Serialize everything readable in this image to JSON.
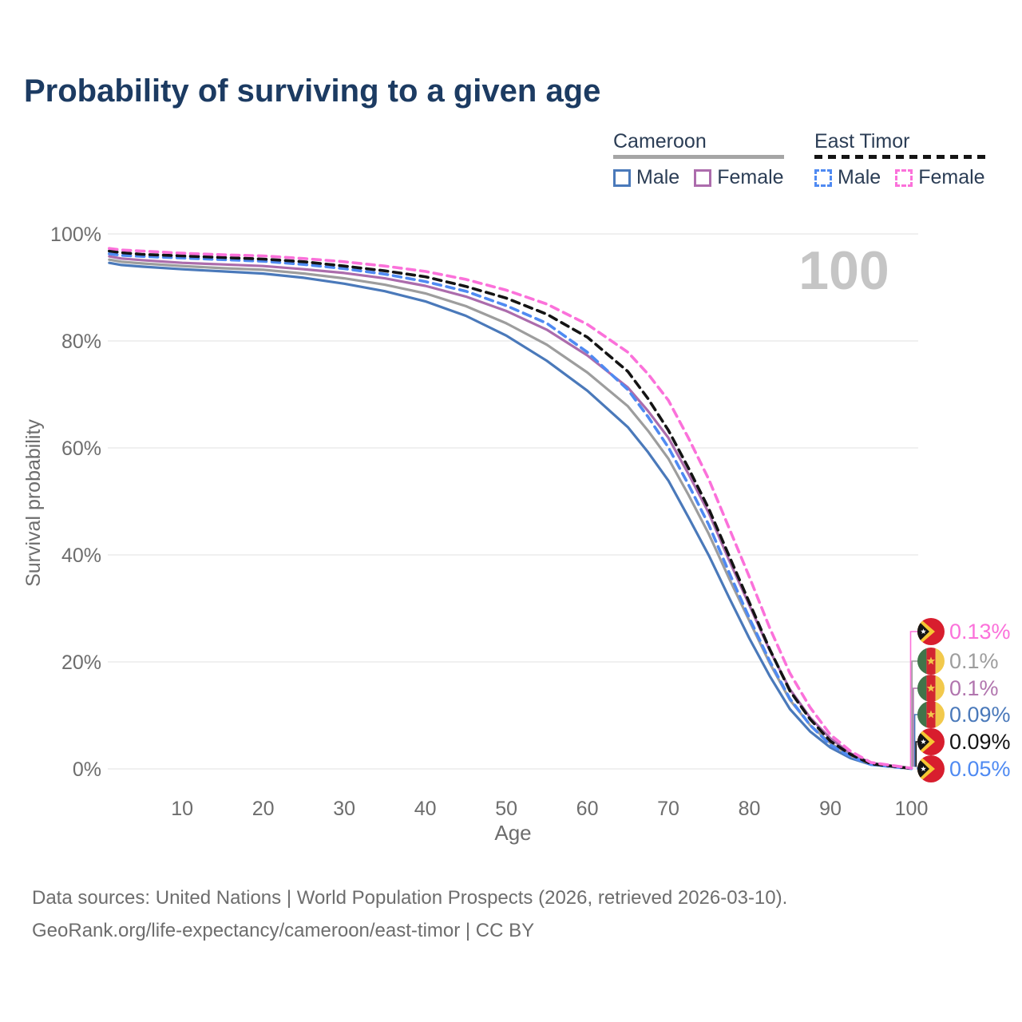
{
  "page": {
    "title": "Probability of surviving to a given age",
    "watermark": "100"
  },
  "legend": {
    "groups": [
      {
        "name": "Cameroon",
        "line_style": "solid",
        "line_color": "#a5a5a5",
        "items": [
          {
            "label": "Male",
            "color": "#4a79ba"
          },
          {
            "label": "Female",
            "color": "#ac6cac"
          }
        ]
      },
      {
        "name": "East Timor",
        "line_style": "dashed",
        "line_color": "#141414",
        "items": [
          {
            "label": "Male",
            "color": "#4f8af2"
          },
          {
            "label": "Female",
            "color": "#fb71da"
          }
        ]
      }
    ]
  },
  "chart_data": {
    "type": "line",
    "title": "Probability of surviving to a given age",
    "xlabel": "Age",
    "ylabel": "Survival probability",
    "xlim": [
      0,
      100
    ],
    "ylim": [
      0,
      100
    ],
    "x_ticks": [
      10,
      20,
      30,
      40,
      50,
      60,
      70,
      80,
      90,
      100
    ],
    "y_ticks": [
      0,
      20,
      40,
      60,
      80,
      100
    ],
    "y_tick_suffix": "%",
    "grid": "horizontal-only",
    "legend_position": "top-right",
    "ages": [
      1,
      2.5,
      5,
      10,
      15,
      20,
      25,
      30,
      35,
      40,
      45,
      50,
      55,
      60,
      65,
      67.5,
      70,
      72.5,
      75,
      77.5,
      80,
      82.5,
      85,
      87.5,
      90,
      92.5,
      95,
      100
    ],
    "series": [
      {
        "name": "Cameroon Male",
        "country": "Cameroon",
        "sex": "Male",
        "style": "solid",
        "color": "#4a79ba",
        "end_value_label": "0.09%",
        "values": [
          94.6,
          94.2,
          93.9,
          93.4,
          93.0,
          92.6,
          91.8,
          90.7,
          89.3,
          87.4,
          84.7,
          81.0,
          76.3,
          70.7,
          63.9,
          59.2,
          53.9,
          47.0,
          39.9,
          32.0,
          24.4,
          17.4,
          11.2,
          7.0,
          4.0,
          2.0,
          0.8,
          0.09
        ]
      },
      {
        "name": "Cameroon Both sexes",
        "country": "Cameroon",
        "sex": "Both",
        "style": "solid",
        "color": "#9d9d9d",
        "end_value_label": "0.1%",
        "values": [
          95.2,
          94.8,
          94.5,
          94.0,
          93.6,
          93.3,
          92.6,
          91.7,
          90.5,
          88.9,
          86.5,
          83.3,
          79.3,
          74.1,
          67.8,
          63.2,
          58.0,
          51.2,
          43.9,
          35.6,
          27.7,
          19.8,
          12.9,
          8.2,
          4.8,
          2.4,
          0.9,
          0.1
        ]
      },
      {
        "name": "Cameroon Female",
        "country": "Cameroon",
        "sex": "Female",
        "style": "solid",
        "color": "#ac6cac",
        "end_value_label": "0.1%",
        "values": [
          95.8,
          95.4,
          95.1,
          94.6,
          94.3,
          94.0,
          93.4,
          92.7,
          91.7,
          90.3,
          88.3,
          85.6,
          82.1,
          77.3,
          71.3,
          66.9,
          61.9,
          55.1,
          47.8,
          39.0,
          30.6,
          22.2,
          14.9,
          9.6,
          5.7,
          2.9,
          1.1,
          0.1
        ]
      },
      {
        "name": "East Timor Male",
        "country": "East Timor",
        "sex": "Male",
        "style": "dashed",
        "color": "#4f8af2",
        "end_value_label": "0.05%",
        "values": [
          96.3,
          96.0,
          95.8,
          95.5,
          95.2,
          94.9,
          94.3,
          93.5,
          92.5,
          91.1,
          89.3,
          86.6,
          83.3,
          77.9,
          70.9,
          65.8,
          60.1,
          53.1,
          45.6,
          36.7,
          28.2,
          20.2,
          13.1,
          8.2,
          4.5,
          2.3,
          0.8,
          0.05
        ]
      },
      {
        "name": "East Timor Both sexes",
        "country": "East Timor",
        "sex": "Both",
        "style": "dashed",
        "color": "#141414",
        "end_value_label": "0.09%",
        "values": [
          96.8,
          96.5,
          96.2,
          95.9,
          95.6,
          95.3,
          94.8,
          94.0,
          93.1,
          92.0,
          90.2,
          88.0,
          85.0,
          80.7,
          74.3,
          69.2,
          63.3,
          56.2,
          48.6,
          39.8,
          31.1,
          22.4,
          14.6,
          9.3,
          5.2,
          2.7,
          0.95,
          0.09
        ]
      },
      {
        "name": "East Timor Female",
        "country": "East Timor",
        "sex": "Female",
        "style": "dashed",
        "color": "#fb71da",
        "end_value_label": "0.13%",
        "values": [
          97.3,
          97.0,
          96.8,
          96.4,
          96.1,
          95.9,
          95.4,
          94.8,
          94.0,
          93.0,
          91.5,
          89.5,
          86.9,
          83.1,
          77.9,
          73.8,
          68.9,
          61.8,
          54.1,
          45.0,
          35.9,
          26.4,
          17.9,
          11.5,
          6.4,
          3.3,
          1.2,
          0.13
        ]
      }
    ]
  },
  "end_labels": [
    {
      "text": "0.13%",
      "flag": "east-timor",
      "color": "#fb71da"
    },
    {
      "text": "0.1%",
      "flag": "cameroon",
      "color": "#9d9d9d"
    },
    {
      "text": "0.1%",
      "flag": "cameroon",
      "color": "#b175ae"
    },
    {
      "text": "0.09%",
      "flag": "cameroon",
      "color": "#4a79ba"
    },
    {
      "text": "0.09%",
      "flag": "east-timor",
      "color": "#141414"
    },
    {
      "text": "0.05%",
      "flag": "east-timor",
      "color": "#4f8af2"
    }
  ],
  "footer": {
    "line1": "Data sources: United Nations | World Population Prospects (2026, retrieved 2026-03-10).",
    "line2": "GeoRank.org/life-expectancy/cameroon/east-timor | CC BY"
  }
}
